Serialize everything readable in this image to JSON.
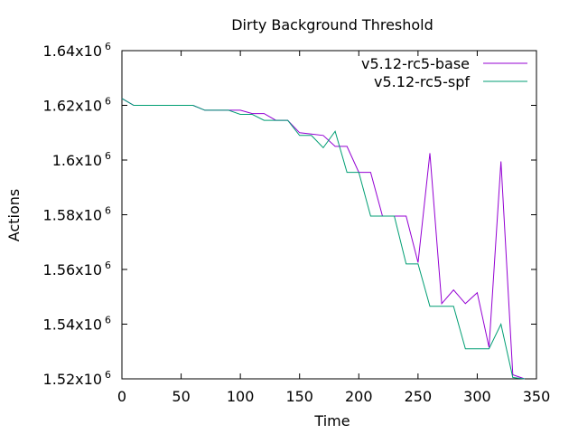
{
  "chart_data": {
    "type": "line",
    "title": "Dirty Background Threshold",
    "xlabel": "Time",
    "ylabel": "Actions",
    "xlim": [
      0,
      350
    ],
    "ylim": [
      1520000,
      1640000
    ],
    "x_ticks": [
      0,
      50,
      100,
      150,
      200,
      250,
      300,
      350
    ],
    "x_tick_labels": [
      "0",
      "50",
      "100",
      "150",
      "200",
      "250",
      "300",
      "350"
    ],
    "y_ticks": [
      1520000,
      1540000,
      1560000,
      1580000,
      1600000,
      1620000,
      1640000
    ],
    "y_tick_labels": [
      {
        "mantissa": "1.52x10",
        "exp": "6"
      },
      {
        "mantissa": "1.54x10",
        "exp": "6"
      },
      {
        "mantissa": "1.56x10",
        "exp": "6"
      },
      {
        "mantissa": "1.58x10",
        "exp": "6"
      },
      {
        "mantissa": "1.6x10",
        "exp": "6"
      },
      {
        "mantissa": "1.62x10",
        "exp": "6"
      },
      {
        "mantissa": "1.64x10",
        "exp": "6"
      }
    ],
    "grid": false,
    "legend_position": "top-right",
    "series": [
      {
        "name": "v5.12-rc5-base",
        "color": "#9400d3",
        "points": [
          [
            0,
            1622500
          ],
          [
            10,
            1620000
          ],
          [
            20,
            1620000
          ],
          [
            30,
            1620000
          ],
          [
            40,
            1620000
          ],
          [
            50,
            1620000
          ],
          [
            60,
            1620000
          ],
          [
            70,
            1618200
          ],
          [
            80,
            1618200
          ],
          [
            90,
            1618200
          ],
          [
            100,
            1618200
          ],
          [
            110,
            1617000
          ],
          [
            120,
            1617000
          ],
          [
            130,
            1614500
          ],
          [
            140,
            1614500
          ],
          [
            150,
            1610000
          ],
          [
            160,
            1609500
          ],
          [
            170,
            1609000
          ],
          [
            180,
            1605000
          ],
          [
            190,
            1605000
          ],
          [
            200,
            1595500
          ],
          [
            210,
            1595500
          ],
          [
            220,
            1579500
          ],
          [
            230,
            1579500
          ],
          [
            240,
            1579500
          ],
          [
            250,
            1562500
          ],
          [
            260,
            1602500
          ],
          [
            270,
            1547500
          ],
          [
            280,
            1552500
          ],
          [
            290,
            1547500
          ],
          [
            300,
            1551500
          ],
          [
            310,
            1531500
          ],
          [
            320,
            1599500
          ],
          [
            330,
            1521500
          ],
          [
            340,
            1520000
          ]
        ]
      },
      {
        "name": "v5.12-rc5-spf",
        "color": "#009e73",
        "points": [
          [
            0,
            1622500
          ],
          [
            10,
            1620000
          ],
          [
            20,
            1620000
          ],
          [
            30,
            1620000
          ],
          [
            40,
            1620000
          ],
          [
            50,
            1620000
          ],
          [
            60,
            1620000
          ],
          [
            70,
            1618200
          ],
          [
            80,
            1618200
          ],
          [
            90,
            1618200
          ],
          [
            100,
            1616700
          ],
          [
            110,
            1616700
          ],
          [
            120,
            1614500
          ],
          [
            130,
            1614500
          ],
          [
            140,
            1614500
          ],
          [
            150,
            1609000
          ],
          [
            160,
            1609000
          ],
          [
            170,
            1604500
          ],
          [
            180,
            1610500
          ],
          [
            190,
            1595500
          ],
          [
            200,
            1595500
          ],
          [
            210,
            1579500
          ],
          [
            220,
            1579500
          ],
          [
            230,
            1579500
          ],
          [
            240,
            1562000
          ],
          [
            250,
            1562000
          ],
          [
            260,
            1546500
          ],
          [
            270,
            1546500
          ],
          [
            280,
            1546500
          ],
          [
            290,
            1531000
          ],
          [
            300,
            1531000
          ],
          [
            310,
            1531000
          ],
          [
            320,
            1540000
          ],
          [
            330,
            1520500
          ],
          [
            340,
            1520000
          ]
        ]
      }
    ]
  }
}
